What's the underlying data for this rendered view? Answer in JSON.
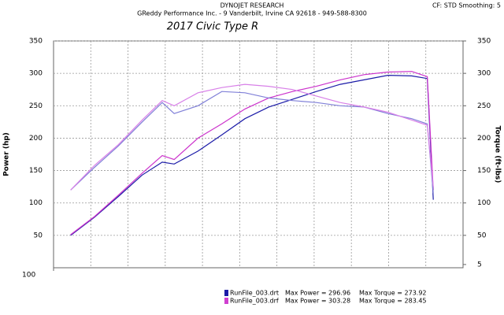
{
  "chart_data": {
    "type": "line",
    "header": "DYNOJET RESEARCH",
    "subheader": "GReddy Performance Inc. - 9 Vanderbilt, Irvine CA 92618 - 949-588-8300",
    "settings": "CF: STD  Smoothing: 5",
    "title": "2017 Civic Type R",
    "ylabel": "Power (hp)",
    "y2label": "Torque (ft-lbs)",
    "x": [
      123,
      155,
      187,
      219,
      246,
      262,
      294,
      326,
      357,
      389,
      421,
      453,
      485,
      517,
      549,
      581,
      602,
      610
    ],
    "xlim": [
      100,
      650
    ],
    "xticks": [
      {
        "value": 100,
        "label": "100"
      }
    ],
    "xgrid": [
      150,
      200,
      250,
      300,
      350,
      400,
      450,
      500,
      550,
      600
    ],
    "ylim": [
      0,
      350
    ],
    "yticks": [
      50,
      100,
      150,
      200,
      250,
      300,
      350
    ],
    "y2lim": [
      0,
      350
    ],
    "y2ticks": [
      5,
      50,
      100,
      150,
      200,
      250,
      300,
      350
    ],
    "runs": [
      {
        "name": "RunFile_003.drt",
        "max_power": "Max Power = 296.96",
        "max_torque": "Max Torque = 273.92",
        "color": "#1c1ca8"
      },
      {
        "name": "RunFile_003.drf",
        "max_power": "Max Power = 303.28",
        "max_torque": "Max Torque = 283.45",
        "color": "#d040d0"
      }
    ],
    "series": [
      {
        "color": "#1c1ca8",
        "values": [
          50,
          78,
          110,
          143,
          163,
          160,
          180,
          205,
          230,
          248,
          260,
          272,
          283,
          290,
          297,
          296,
          292,
          105
        ]
      },
      {
        "color": "#cc33cc",
        "values": [
          51,
          79,
          112,
          146,
          173,
          167,
          200,
          222,
          245,
          262,
          272,
          280,
          290,
          298,
          302,
          303,
          295,
          120
        ]
      },
      {
        "color": "#8080d8",
        "axis": "y2",
        "values": [
          120,
          155,
          188,
          225,
          255,
          238,
          250,
          272,
          270,
          262,
          258,
          255,
          250,
          248,
          238,
          230,
          222,
          115
        ]
      },
      {
        "color": "#d880e8",
        "axis": "y2",
        "values": [
          120,
          158,
          190,
          228,
          258,
          250,
          270,
          278,
          283,
          280,
          275,
          265,
          255,
          248,
          240,
          228,
          220,
          125
        ]
      }
    ]
  }
}
